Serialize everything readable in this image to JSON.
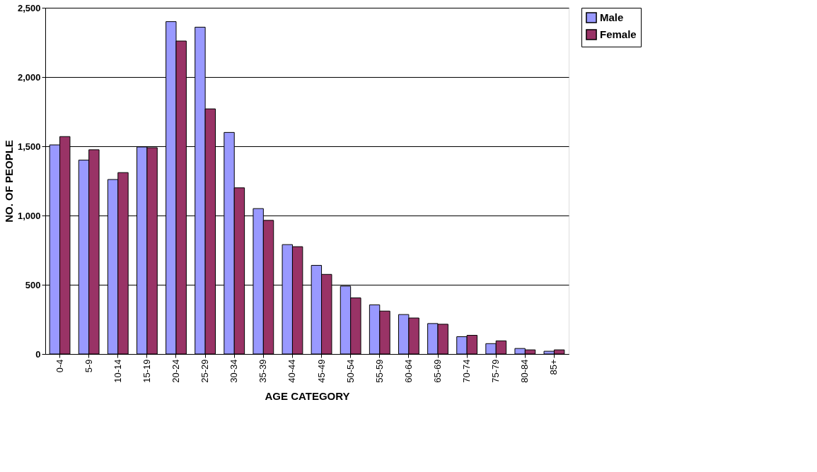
{
  "chart_data": {
    "type": "bar",
    "xlabel": "AGE CATEGORY",
    "ylabel": "NO. OF PEOPLE",
    "categories": [
      "0-4",
      "5-9",
      "10-14",
      "15-19",
      "20-24",
      "25-29",
      "30-34",
      "35-39",
      "40-44",
      "45-49",
      "50-54",
      "55-59",
      "60-64",
      "65-69",
      "70-74",
      "75-79",
      "80-84",
      "85+"
    ],
    "series": [
      {
        "name": "Male",
        "color": "#9999ff",
        "values": [
          1510,
          1400,
          1260,
          1495,
          2400,
          2360,
          1600,
          1050,
          790,
          640,
          490,
          355,
          285,
          220,
          125,
          75,
          40,
          20
        ]
      },
      {
        "name": "Female",
        "color": "#993366",
        "values": [
          1570,
          1475,
          1310,
          1490,
          2260,
          1770,
          1200,
          965,
          775,
          575,
          405,
          310,
          260,
          215,
          135,
          95,
          30,
          30
        ]
      }
    ],
    "ylim": [
      0,
      2500
    ],
    "yticks": [
      {
        "value": 0,
        "label": "0"
      },
      {
        "value": 500,
        "label": "500"
      },
      {
        "value": 1000,
        "label": "1,000"
      },
      {
        "value": 1500,
        "label": "1,500"
      },
      {
        "value": 2000,
        "label": "2,000"
      },
      {
        "value": 2500,
        "label": "2,500"
      }
    ],
    "grid": "y",
    "legend": "right"
  }
}
